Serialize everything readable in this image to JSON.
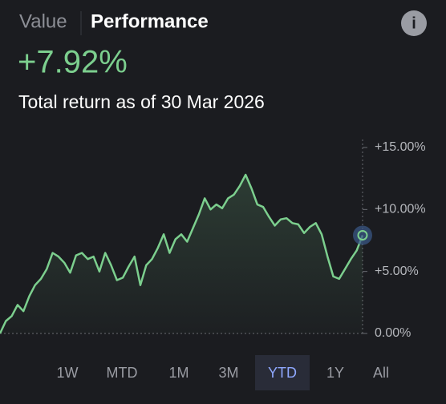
{
  "header": {
    "tabs": [
      "Value",
      "Performance"
    ],
    "return": "+7.92%",
    "subtitle": "Total return as of 30 Mar 2026",
    "info": "i"
  },
  "chart_data": {
    "type": "line",
    "color": "#7ccf8e",
    "values": [
      0,
      1.0,
      1.4,
      2.3,
      1.8,
      3.0,
      3.9,
      4.4,
      5.2,
      6.5,
      6.2,
      5.7,
      4.9,
      6.3,
      6.5,
      6.0,
      6.2,
      5.0,
      6.5,
      5.5,
      4.3,
      4.5,
      5.4,
      6.2,
      3.9,
      5.5,
      6.0,
      6.9,
      8.0,
      6.5,
      7.6,
      8.0,
      7.4,
      8.5,
      9.6,
      10.9,
      10.0,
      10.4,
      10.1,
      10.9,
      11.2,
      11.9,
      12.8,
      11.7,
      10.4,
      10.2,
      9.4,
      8.7,
      9.2,
      9.3,
      8.9,
      8.8,
      8.1,
      8.6,
      8.9,
      8.0,
      6.2,
      4.6,
      4.4,
      5.2,
      6.0,
      6.7,
      7.92
    ],
    "ylim": [
      0,
      15
    ],
    "yticks": [
      {
        "value": 0,
        "label": "0.00%"
      },
      {
        "value": 5,
        "label": "+5.00%"
      },
      {
        "value": 10,
        "label": "+10.00%"
      },
      {
        "value": 15,
        "label": "+15.00%"
      }
    ]
  },
  "ranges": [
    "1W",
    "MTD",
    "1M",
    "3M",
    "YTD",
    "1Y",
    "All"
  ],
  "selected_range": 4
}
